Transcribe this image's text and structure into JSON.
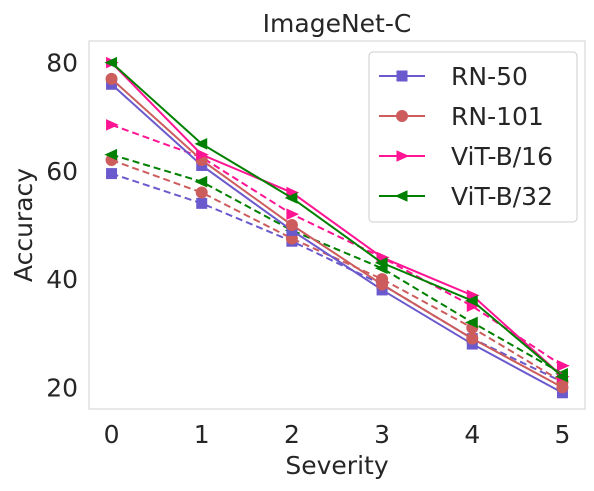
{
  "chart_data": {
    "type": "line",
    "title": "ImageNet-C",
    "xlabel": "Severity",
    "ylabel": "Accuracy",
    "x": [
      0,
      1,
      2,
      3,
      4,
      5
    ],
    "xlim": [
      -0.25,
      5.25
    ],
    "ylim": [
      16,
      84
    ],
    "xticks": [
      "0",
      "1",
      "2",
      "3",
      "4",
      "5"
    ],
    "yticks": [
      20,
      40,
      60,
      80
    ],
    "grid": false,
    "legend_position": "top-right",
    "series": [
      {
        "name": "RN-50",
        "color": "#6a5acd",
        "marker": "square",
        "style": "solid",
        "values": [
          76,
          61,
          49,
          38,
          28,
          19
        ]
      },
      {
        "name": "RN-101",
        "color": "#cd5c5c",
        "marker": "circle",
        "style": "solid",
        "values": [
          77,
          62,
          50,
          39,
          29,
          20
        ]
      },
      {
        "name": "ViT-B/16",
        "color": "#ff1493",
        "marker": "triangle-right",
        "style": "solid",
        "values": [
          80,
          63,
          56,
          44,
          37,
          22
        ]
      },
      {
        "name": "ViT-B/32",
        "color": "#008000",
        "marker": "triangle-left",
        "style": "solid",
        "values": [
          80,
          65,
          55,
          43,
          36,
          22
        ]
      },
      {
        "name": "",
        "color": "#6a5acd",
        "marker": "square",
        "style": "dashed",
        "values": [
          59.5,
          54,
          47,
          39,
          29,
          21
        ]
      },
      {
        "name": "",
        "color": "#cd5c5c",
        "marker": "circle",
        "style": "dashed",
        "values": [
          62,
          56,
          47.5,
          40,
          31,
          21
        ]
      },
      {
        "name": "",
        "color": "#ff1493",
        "marker": "triangle-right",
        "style": "dashed",
        "values": [
          68.5,
          62.5,
          52,
          44,
          35,
          24
        ]
      },
      {
        "name": "",
        "color": "#008000",
        "marker": "triangle-left",
        "style": "dashed",
        "values": [
          63,
          58,
          49,
          42,
          32,
          22.5
        ]
      }
    ]
  }
}
